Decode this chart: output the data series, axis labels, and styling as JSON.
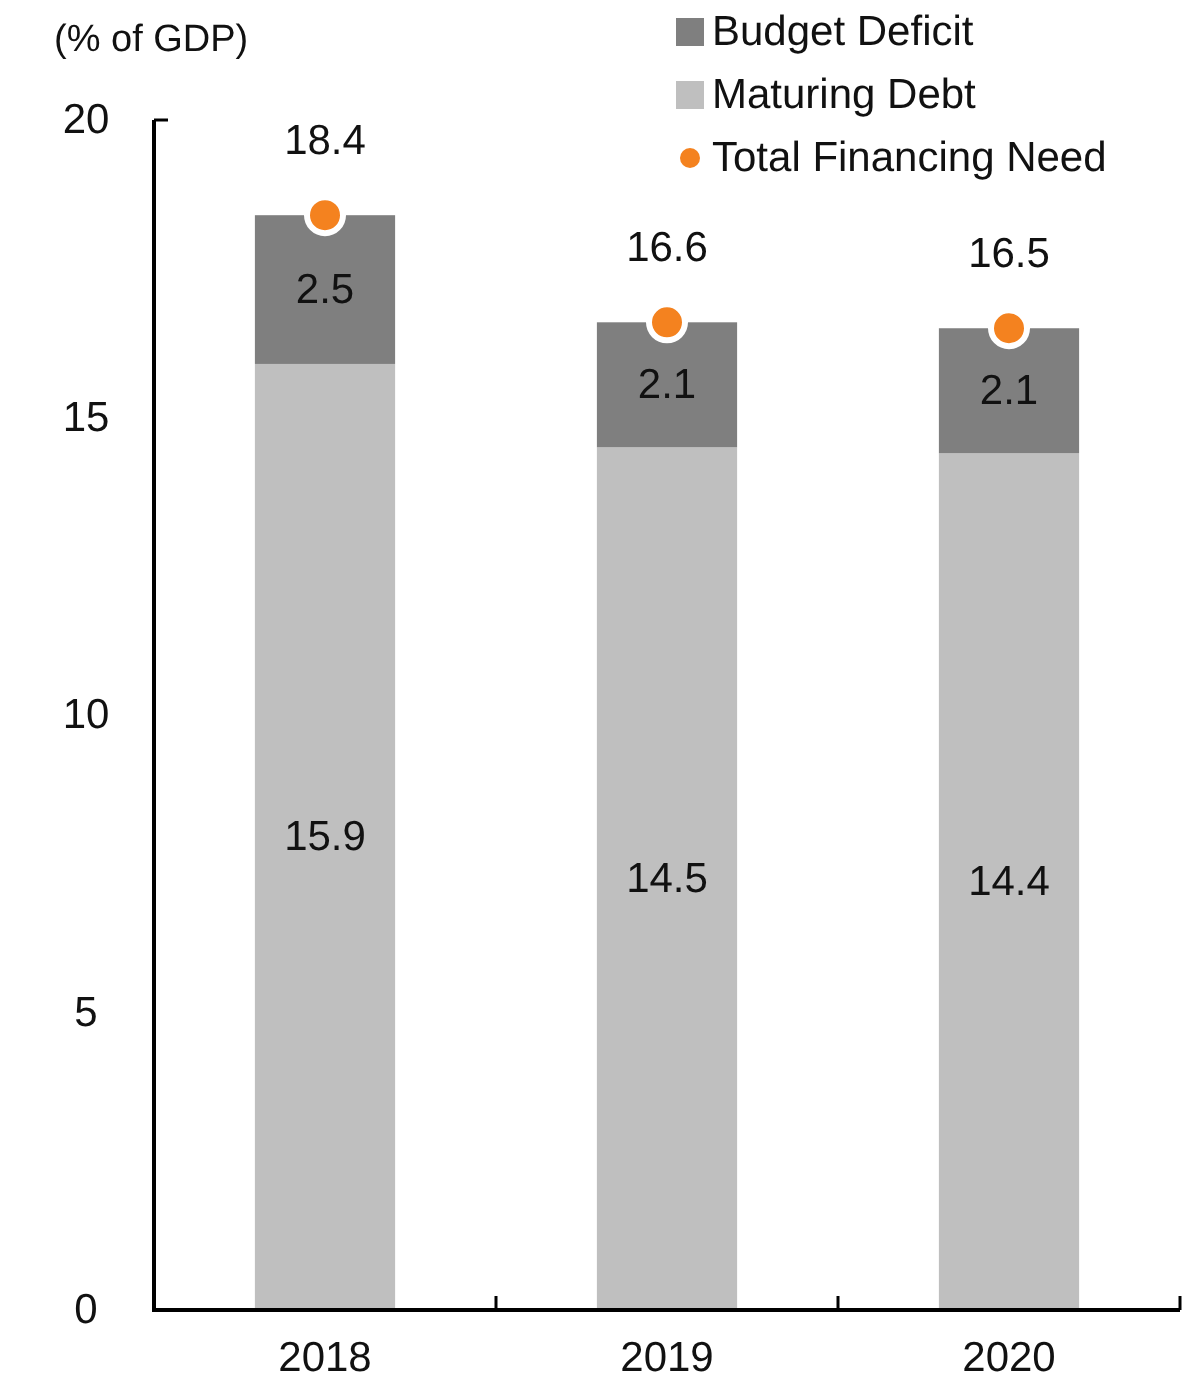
{
  "chart_data": {
    "type": "bar",
    "ylabel": "(% of GDP)",
    "categories": [
      "2018",
      "2019",
      "2020"
    ],
    "stacked": true,
    "series": [
      {
        "name": "Maturing Debt",
        "color": "#bfbfbf",
        "values": [
          15.9,
          14.5,
          14.4
        ]
      },
      {
        "name": "Budget Deficit",
        "color": "#7f7f7f",
        "values": [
          2.5,
          2.1,
          2.1
        ]
      },
      {
        "name": "Total Financing Need",
        "type": "scatter",
        "color": "#f4821f",
        "values": [
          18.4,
          16.6,
          16.5
        ]
      }
    ],
    "ylim": [
      0,
      20
    ],
    "yticks": [
      0,
      5,
      10,
      15,
      20
    ],
    "data_labels": true,
    "grid": false,
    "legend": "top right",
    "marker": "circle"
  }
}
